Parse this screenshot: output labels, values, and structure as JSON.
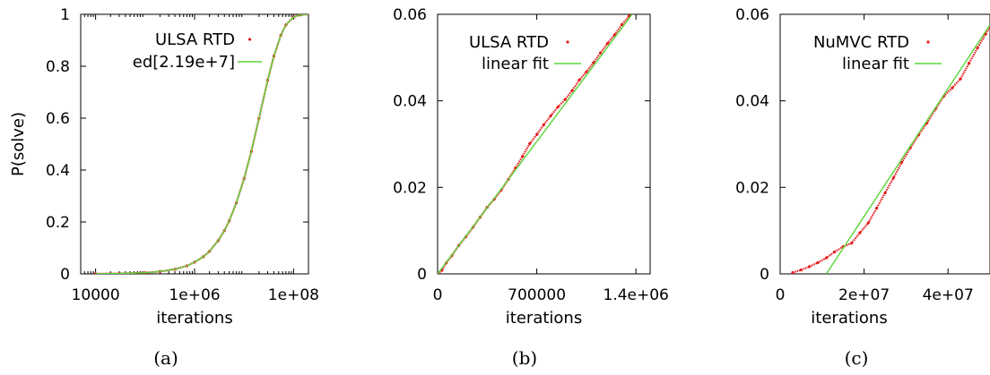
{
  "chart_data": [
    {
      "type": "line",
      "caption": "(a)",
      "xlabel": "iterations",
      "ylabel": "P(solve)",
      "xscale": "log",
      "xlim": [
        5000,
        200000000
      ],
      "ylim": [
        0,
        1
      ],
      "xticks": [
        10000,
        1000000,
        100000000
      ],
      "xtick_labels": [
        "10000",
        "1e+06",
        "1e+08"
      ],
      "yticks": [
        0,
        0.2,
        0.4,
        0.6,
        0.8,
        1
      ],
      "ytick_labels": [
        "0",
        "0.2",
        "0.4",
        "0.6",
        "0.8",
        "1"
      ],
      "legend_position": "top-right",
      "series": [
        {
          "name": "ULSA RTD",
          "style": "points",
          "color": "#e41a1c",
          "x": [
            10000,
            30000,
            100000,
            200000,
            400000,
            700000,
            1000000,
            1500000,
            2000000,
            3000000,
            4000000,
            5000000,
            7000000,
            10000000,
            14000000,
            20000000,
            30000000,
            40000000,
            55000000,
            70000000,
            100000000,
            140000000,
            200000000
          ],
          "y": [
            0.0005,
            0.0014,
            0.0046,
            0.009,
            0.018,
            0.031,
            0.045,
            0.066,
            0.087,
            0.128,
            0.167,
            0.204,
            0.274,
            0.367,
            0.472,
            0.599,
            0.746,
            0.839,
            0.919,
            0.959,
            0.99,
            0.998,
            1.0
          ]
        },
        {
          "name": "ed[2.19e+7]",
          "style": "line",
          "color": "#5cd63c",
          "x": [
            10000,
            30000,
            100000,
            200000,
            400000,
            700000,
            1000000,
            1500000,
            2000000,
            3000000,
            4000000,
            5000000,
            7000000,
            10000000,
            14000000,
            20000000,
            30000000,
            40000000,
            55000000,
            70000000,
            100000000,
            140000000,
            200000000
          ],
          "y": [
            0.0005,
            0.0014,
            0.0046,
            0.009,
            0.018,
            0.031,
            0.045,
            0.066,
            0.087,
            0.128,
            0.167,
            0.204,
            0.274,
            0.367,
            0.472,
            0.599,
            0.746,
            0.839,
            0.919,
            0.959,
            0.99,
            0.998,
            1.0
          ]
        }
      ]
    },
    {
      "type": "line",
      "caption": "(b)",
      "xlabel": "iterations",
      "ylabel": "",
      "xscale": "linear",
      "xlim": [
        0,
        1500000
      ],
      "ylim": [
        0,
        0.06
      ],
      "xticks": [
        0,
        700000,
        1400000
      ],
      "xtick_labels": [
        "0",
        "700000",
        "1.4e+06"
      ],
      "yticks": [
        0,
        0.02,
        0.04,
        0.06
      ],
      "ytick_labels": [
        "0",
        "0.02",
        "0.04",
        "0.06"
      ],
      "legend_position": "top-left",
      "series": [
        {
          "name": "ULSA RTD",
          "style": "points",
          "color": "#e41a1c",
          "x": [
            0,
            30000,
            60000,
            100000,
            150000,
            200000,
            250000,
            300000,
            350000,
            400000,
            450000,
            500000,
            550000,
            600000,
            650000,
            700000,
            750000,
            800000,
            850000,
            900000,
            950000,
            1000000,
            1050000,
            1100000,
            1150000,
            1200000,
            1250000,
            1300000,
            1350000,
            1380000
          ],
          "y": [
            0,
            0.0008,
            0.0025,
            0.0042,
            0.0066,
            0.0086,
            0.0108,
            0.0131,
            0.0154,
            0.0173,
            0.0194,
            0.0219,
            0.0245,
            0.0272,
            0.0301,
            0.0322,
            0.0345,
            0.0366,
            0.0386,
            0.0403,
            0.0424,
            0.0448,
            0.0467,
            0.0488,
            0.0511,
            0.0533,
            0.0553,
            0.0576,
            0.0595,
            0.0603
          ]
        },
        {
          "name": "linear fit",
          "style": "line",
          "color": "#5cd63c",
          "x": [
            0,
            1380000
          ],
          "y": [
            0,
            0.0603
          ]
        }
      ]
    },
    {
      "type": "line",
      "caption": "(c)",
      "xlabel": "iterations",
      "ylabel": "",
      "xscale": "linear",
      "xlim": [
        0,
        50000000
      ],
      "ylim": [
        0,
        0.06
      ],
      "xticks": [
        0,
        20000000,
        40000000
      ],
      "xtick_labels": [
        "0",
        "2e+07",
        "4e+07"
      ],
      "yticks": [
        0,
        0.02,
        0.04,
        0.06
      ],
      "ytick_labels": [
        "0",
        "0.02",
        "0.04",
        "0.06"
      ],
      "legend_position": "top-left",
      "series": [
        {
          "name": "NuMVC RTD",
          "style": "points",
          "color": "#e41a1c",
          "x": [
            3000000,
            5000000,
            7000000,
            9000000,
            11000000,
            13000000,
            15000000,
            17000000,
            19000000,
            21000000,
            23000000,
            25000000,
            27000000,
            29000000,
            31000000,
            33000000,
            35000000,
            37000000,
            39000000,
            41000000,
            43000000,
            45000000,
            47000000,
            49000000,
            50000000
          ],
          "y": [
            0.0003,
            0.0009,
            0.0017,
            0.0026,
            0.0037,
            0.0051,
            0.0063,
            0.0071,
            0.0095,
            0.0118,
            0.0152,
            0.0187,
            0.0222,
            0.0258,
            0.0291,
            0.0321,
            0.0349,
            0.0381,
            0.0411,
            0.043,
            0.0451,
            0.0487,
            0.0522,
            0.0555,
            0.0572
          ]
        },
        {
          "name": "linear fit",
          "style": "line",
          "color": "#5cd63c",
          "x": [
            11000000,
            50000000
          ],
          "y": [
            0,
            0.0576
          ]
        }
      ]
    }
  ]
}
